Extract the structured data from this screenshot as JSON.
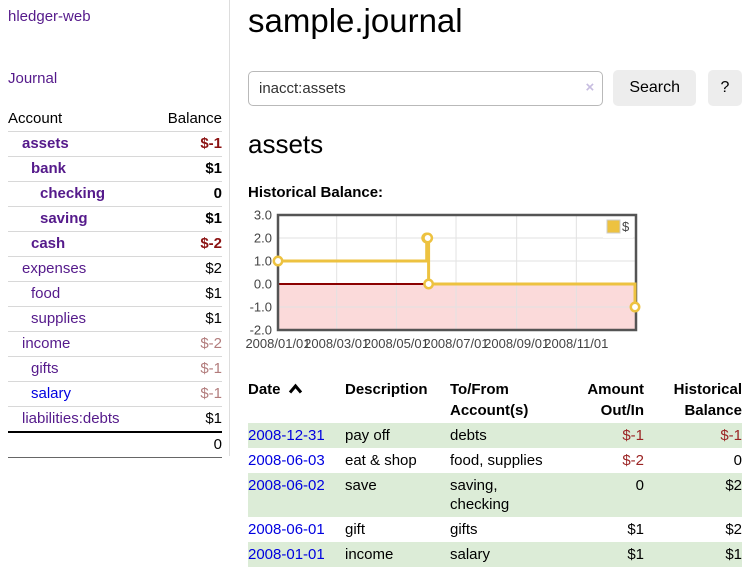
{
  "app": {
    "brand": "hledger-web",
    "nav": {
      "journal": "Journal"
    }
  },
  "colors": {
    "link_purple": "#551a8b",
    "link_blue": "#0000e0",
    "negative_strong": "#8b1212",
    "negative_muted": "#b27c7c",
    "negative_register": "#9b2424",
    "row_stripe_green": "#dcecd7",
    "chart_series_yellow": "#edc240",
    "chart_negative_pink": "#fbdada",
    "chart_zero_line": "#8b0000"
  },
  "sidebar": {
    "headers": {
      "account": "Account",
      "balance": "Balance"
    },
    "accounts": [
      {
        "name": "assets",
        "balance": "$-1",
        "depth": 1,
        "bold": true,
        "negative": true,
        "unvisited": false
      },
      {
        "name": "bank",
        "balance": "$1",
        "depth": 2,
        "bold": true,
        "negative": false,
        "unvisited": false
      },
      {
        "name": "checking",
        "balance": "0",
        "depth": 3,
        "bold": true,
        "negative": false,
        "unvisited": false
      },
      {
        "name": "saving",
        "balance": "$1",
        "depth": 3,
        "bold": true,
        "negative": false,
        "unvisited": false
      },
      {
        "name": "cash",
        "balance": "$-2",
        "depth": 2,
        "bold": true,
        "negative": true,
        "unvisited": false
      },
      {
        "name": "expenses",
        "balance": "$2",
        "depth": 1,
        "bold": false,
        "negative": false,
        "unvisited": false
      },
      {
        "name": "food",
        "balance": "$1",
        "depth": 2,
        "bold": false,
        "negative": false,
        "unvisited": false
      },
      {
        "name": "supplies",
        "balance": "$1",
        "depth": 2,
        "bold": false,
        "negative": false,
        "unvisited": false
      },
      {
        "name": "income",
        "balance": "$-2",
        "depth": 1,
        "bold": false,
        "negative": true,
        "unvisited": false
      },
      {
        "name": "gifts",
        "balance": "$-1",
        "depth": 2,
        "bold": false,
        "negative": true,
        "unvisited": false
      },
      {
        "name": "salary",
        "balance": "$-1",
        "depth": 2,
        "bold": false,
        "negative": true,
        "unvisited": true
      },
      {
        "name": "liabilities:debts",
        "balance": "$1",
        "depth": 1,
        "bold": false,
        "negative": false,
        "unvisited": false
      }
    ],
    "total": "0"
  },
  "main": {
    "title": "sample.journal",
    "search": {
      "value": "inacct:assets",
      "clear": "×",
      "button": "Search",
      "help": "?"
    },
    "account_heading": "assets",
    "chart_title": "Historical Balance:"
  },
  "chart_data": {
    "type": "line",
    "title": "Historical Balance",
    "steps": true,
    "series": [
      {
        "name": "$",
        "color": "#edc240",
        "points": [
          [
            "2008-01-01",
            1
          ],
          [
            "2008-06-01",
            2
          ],
          [
            "2008-06-02",
            2
          ],
          [
            "2008-06-03",
            0
          ],
          [
            "2008-12-31",
            -1
          ]
        ]
      }
    ],
    "xlim": [
      "2008-01-01",
      "2009-01-01"
    ],
    "x_tick_dates": [
      "2008-01-01",
      "2008-03-01",
      "2008-05-01",
      "2008-07-01",
      "2008-09-01",
      "2008-11-01",
      "2009-01-01"
    ],
    "x_tick_labels": [
      "2008/01/01",
      "2008/03/01",
      "2008/05/01",
      "2008/07/01",
      "2008/09/01",
      "2008/11/01"
    ],
    "ylim": [
      -2,
      3
    ],
    "y_ticks": [
      3,
      2,
      1,
      0,
      -1,
      -2
    ],
    "y_tick_labels": [
      "3.0",
      "2.0",
      "1.0",
      "0.0",
      "-1.0",
      "-2.0"
    ],
    "grid": true,
    "negative_region": {
      "from": 0,
      "to": -2,
      "color": "#fbdada",
      "line_color": "#8b0000"
    },
    "legend": {
      "label": "$",
      "position": "top-right"
    }
  },
  "register": {
    "columns": [
      {
        "label": "Date",
        "sortable": true,
        "align": "left"
      },
      {
        "label": "Description",
        "sortable": false,
        "align": "left"
      },
      {
        "label": "To/From Account(s)",
        "sortable": false,
        "align": "left"
      },
      {
        "label": "Amount Out/In",
        "sortable": false,
        "align": "right"
      },
      {
        "label": "Historical Balance",
        "sortable": false,
        "align": "right"
      }
    ],
    "rows": [
      {
        "date": "2008-12-31",
        "description": "pay off",
        "accounts": "debts",
        "amount": "$-1",
        "balance": "$-1",
        "amount_negative": true,
        "balance_negative": true
      },
      {
        "date": "2008-06-03",
        "description": "eat & shop",
        "accounts": "food, supplies",
        "amount": "$-2",
        "balance": "0",
        "amount_negative": true,
        "balance_negative": false
      },
      {
        "date": "2008-06-02",
        "description": "save",
        "accounts": "saving, checking",
        "amount": "0",
        "balance": "$2",
        "amount_negative": false,
        "balance_negative": false
      },
      {
        "date": "2008-06-01",
        "description": "gift",
        "accounts": "gifts",
        "amount": "$1",
        "balance": "$2",
        "amount_negative": false,
        "balance_negative": false
      },
      {
        "date": "2008-01-01",
        "description": "income",
        "accounts": "salary",
        "amount": "$1",
        "balance": "$1",
        "amount_negative": false,
        "balance_negative": false
      }
    ]
  }
}
